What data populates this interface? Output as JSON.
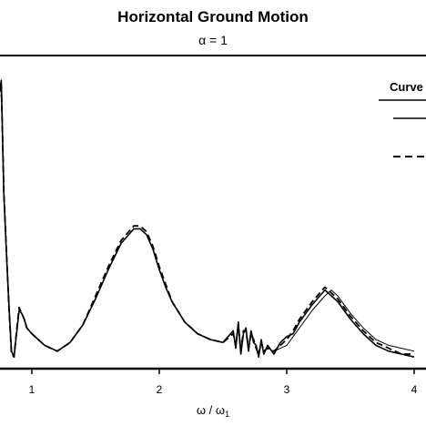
{
  "chart_data": {
    "type": "line",
    "title": "Horizontal Ground Motion",
    "subtitle": "α = 1",
    "xlabel": "ω / ω",
    "xlabel_sub": "1",
    "ylabel": "",
    "xlim": [
      0.74,
      4.0
    ],
    "ylim": [
      0,
      1
    ],
    "grid": false,
    "legend": {
      "title": "Curve",
      "placement": "top-right",
      "entries": [
        "",
        ""
      ]
    },
    "xticks": [
      1,
      2,
      3,
      4
    ],
    "series": [
      {
        "name": "",
        "style": "solid",
        "x": [
          0.74,
          0.76,
          0.78,
          0.8,
          0.82,
          0.84,
          0.86,
          0.88,
          0.9,
          0.92,
          0.94,
          0.96,
          1.0,
          1.1,
          1.2,
          1.3,
          1.4,
          1.5,
          1.6,
          1.7,
          1.8,
          1.85,
          1.9,
          1.95,
          2.0,
          2.05,
          2.1,
          2.2,
          2.3,
          2.4,
          2.5,
          2.58,
          2.6,
          2.62,
          2.64,
          2.66,
          2.68,
          2.7,
          2.72,
          2.74,
          2.76,
          2.78,
          2.8,
          2.82,
          2.85,
          2.9,
          2.95,
          3.0,
          3.05,
          3.1,
          3.2,
          3.3,
          3.35,
          3.4,
          3.45,
          3.5,
          3.6,
          3.7,
          3.8,
          3.9,
          4.0
        ],
        "y": [
          0.93,
          0.99,
          0.6,
          0.4,
          0.22,
          0.06,
          0.04,
          0.12,
          0.2,
          0.19,
          0.17,
          0.14,
          0.12,
          0.08,
          0.06,
          0.09,
          0.15,
          0.24,
          0.34,
          0.43,
          0.48,
          0.48,
          0.46,
          0.41,
          0.34,
          0.28,
          0.23,
          0.16,
          0.12,
          0.1,
          0.09,
          0.13,
          0.07,
          0.16,
          0.05,
          0.12,
          0.14,
          0.06,
          0.13,
          0.09,
          0.08,
          0.04,
          0.1,
          0.05,
          0.08,
          0.05,
          0.09,
          0.11,
          0.12,
          0.16,
          0.22,
          0.27,
          0.25,
          0.23,
          0.2,
          0.17,
          0.12,
          0.08,
          0.06,
          0.05,
          0.04
        ]
      },
      {
        "name": "",
        "style": "dashed",
        "x": [
          0.74,
          0.76,
          0.78,
          0.8,
          0.82,
          0.84,
          0.86,
          0.88,
          0.9,
          0.92,
          0.94,
          0.96,
          1.0,
          1.1,
          1.2,
          1.3,
          1.4,
          1.5,
          1.6,
          1.7,
          1.8,
          1.85,
          1.9,
          1.95,
          2.0,
          2.05,
          2.1,
          2.2,
          2.3,
          2.4,
          2.5,
          2.58,
          2.6,
          2.62,
          2.64,
          2.66,
          2.68,
          2.7,
          2.72,
          2.74,
          2.76,
          2.78,
          2.8,
          2.82,
          2.85,
          2.9,
          2.95,
          3.0,
          3.05,
          3.1,
          3.2,
          3.3,
          3.35,
          3.4,
          3.45,
          3.5,
          3.6,
          3.7,
          3.8,
          3.9,
          4.0
        ],
        "y": [
          0.92,
          0.98,
          0.61,
          0.41,
          0.21,
          0.05,
          0.04,
          0.13,
          0.21,
          0.19,
          0.17,
          0.14,
          0.12,
          0.08,
          0.06,
          0.09,
          0.15,
          0.25,
          0.35,
          0.44,
          0.49,
          0.49,
          0.47,
          0.42,
          0.35,
          0.29,
          0.23,
          0.16,
          0.12,
          0.1,
          0.09,
          0.12,
          0.08,
          0.15,
          0.06,
          0.13,
          0.13,
          0.07,
          0.12,
          0.1,
          0.07,
          0.05,
          0.09,
          0.06,
          0.07,
          0.06,
          0.08,
          0.1,
          0.13,
          0.17,
          0.23,
          0.28,
          0.26,
          0.24,
          0.21,
          0.18,
          0.13,
          0.09,
          0.07,
          0.05,
          0.05
        ]
      },
      {
        "name": "",
        "style": "solid-thin",
        "x": [
          2.9,
          2.95,
          3.0,
          3.05,
          3.1,
          3.2,
          3.3,
          3.35,
          3.4,
          3.45,
          3.5,
          3.6,
          3.7,
          3.8,
          3.9,
          4.0
        ],
        "y": [
          0.06,
          0.07,
          0.08,
          0.11,
          0.14,
          0.2,
          0.25,
          0.27,
          0.25,
          0.22,
          0.19,
          0.14,
          0.1,
          0.08,
          0.07,
          0.06
        ]
      }
    ]
  }
}
